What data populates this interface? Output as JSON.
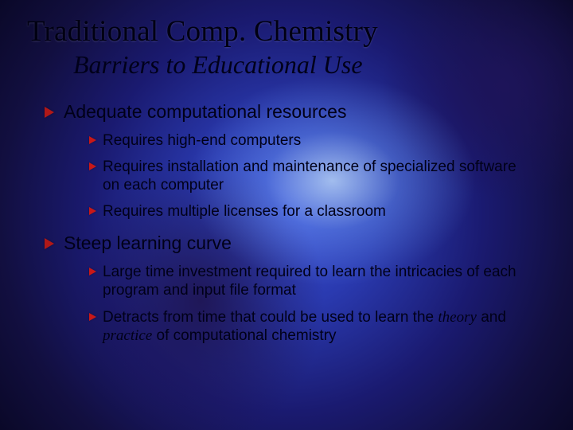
{
  "colors": {
    "bullet_primary": "#b01818",
    "bullet_secondary": "#c81818",
    "text": "#000018",
    "bg_center": "#3a4ed0",
    "bg_outer": "#0a0828"
  },
  "typography": {
    "title_font": "Georgia",
    "body_font": "Verdana",
    "title_size_pt": 28,
    "subtitle_size_pt": 24,
    "level1_size_pt": 17,
    "level2_size_pt": 14
  },
  "title": "Traditional Comp. Chemistry",
  "subtitle": "Barriers to Educational Use",
  "items": [
    {
      "label": "Adequate computational resources",
      "sub": [
        {
          "text": "Requires high-end computers"
        },
        {
          "text": "Requires installation and maintenance of specialized software on each computer"
        },
        {
          "text": "Requires multiple licenses for a classroom"
        }
      ]
    },
    {
      "label": "Steep learning curve",
      "sub": [
        {
          "text": "Large time investment required to learn the intricacies of each program and input file format"
        },
        {
          "text_pre": "Detracts from time that could be used to learn the ",
          "em1": "theory",
          "mid": " and ",
          "em2": "practice",
          "text_post": " of computational chemistry"
        }
      ]
    }
  ]
}
